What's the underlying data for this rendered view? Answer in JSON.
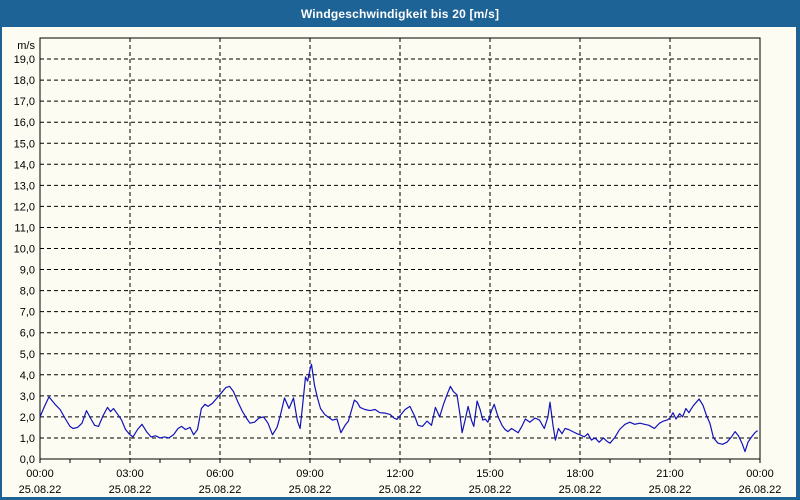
{
  "window": {
    "title": "Windgeschwindigkeit bis 20 [m/s]"
  },
  "colors": {
    "frame": "#1d6396",
    "titlebar_bg": "#1d6396",
    "titlebar_text": "#ffffff",
    "page_bg": "#fcfcf2",
    "grid": "#000000",
    "axis_border": "#000000",
    "line": "#1212bb",
    "label_text": "#000000"
  },
  "chart_data": {
    "type": "line",
    "title": "Windgeschwindigkeit bis 20 [m/s]",
    "ylabel": "m/s",
    "xlabel": "",
    "ylim": [
      0,
      20
    ],
    "ytick_step": 1,
    "ytick_labels": [
      "0,0",
      "1,0",
      "2,0",
      "3,0",
      "4,0",
      "5,0",
      "6,0",
      "7,0",
      "8,0",
      "9,0",
      "10,0",
      "11,0",
      "12,0",
      "13,0",
      "14,0",
      "15,0",
      "16,0",
      "17,0",
      "18,0",
      "19,0"
    ],
    "xlim_hours": [
      0,
      24
    ],
    "x_major_step_hours": 3,
    "x_minor_tick_hours": 1,
    "xticks": [
      {
        "time": "00:00",
        "date": "25.08.22"
      },
      {
        "time": "03:00",
        "date": "25.08.22"
      },
      {
        "time": "06:00",
        "date": "25.08.22"
      },
      {
        "time": "09:00",
        "date": "25.08.22"
      },
      {
        "time": "12:00",
        "date": "25.08.22"
      },
      {
        "time": "15:00",
        "date": "25.08.22"
      },
      {
        "time": "18:00",
        "date": "25.08.22"
      },
      {
        "time": "21:00",
        "date": "25.08.22"
      },
      {
        "time": "00:00",
        "date": "26.08.22"
      }
    ],
    "grid": "dashed",
    "legend": "none",
    "series": [
      {
        "name": "Windgeschwindigkeit",
        "unit": "m/s",
        "color": "#1212bb",
        "points": [
          [
            0.0,
            2.0
          ],
          [
            0.15,
            2.5
          ],
          [
            0.3,
            2.95
          ],
          [
            0.5,
            2.6
          ],
          [
            0.67,
            2.35
          ],
          [
            0.83,
            1.95
          ],
          [
            1.0,
            1.55
          ],
          [
            1.1,
            1.45
          ],
          [
            1.25,
            1.5
          ],
          [
            1.4,
            1.7
          ],
          [
            1.55,
            2.3
          ],
          [
            1.7,
            1.9
          ],
          [
            1.82,
            1.6
          ],
          [
            1.95,
            1.55
          ],
          [
            2.1,
            2.05
          ],
          [
            2.25,
            2.45
          ],
          [
            2.35,
            2.25
          ],
          [
            2.45,
            2.4
          ],
          [
            2.6,
            2.1
          ],
          [
            2.72,
            1.85
          ],
          [
            2.85,
            1.4
          ],
          [
            3.0,
            1.15
          ],
          [
            3.1,
            1.05
          ],
          [
            3.25,
            1.4
          ],
          [
            3.4,
            1.65
          ],
          [
            3.55,
            1.3
          ],
          [
            3.7,
            1.05
          ],
          [
            3.85,
            1.1
          ],
          [
            4.0,
            1.0
          ],
          [
            4.15,
            1.05
          ],
          [
            4.3,
            1.0
          ],
          [
            4.45,
            1.15
          ],
          [
            4.6,
            1.45
          ],
          [
            4.72,
            1.55
          ],
          [
            4.85,
            1.4
          ],
          [
            5.0,
            1.5
          ],
          [
            5.12,
            1.15
          ],
          [
            5.25,
            1.4
          ],
          [
            5.38,
            2.4
          ],
          [
            5.5,
            2.6
          ],
          [
            5.6,
            2.5
          ],
          [
            5.75,
            2.65
          ],
          [
            5.9,
            2.9
          ],
          [
            6.05,
            3.15
          ],
          [
            6.2,
            3.4
          ],
          [
            6.32,
            3.45
          ],
          [
            6.45,
            3.2
          ],
          [
            6.6,
            2.7
          ],
          [
            6.75,
            2.25
          ],
          [
            6.9,
            1.9
          ],
          [
            7.0,
            1.7
          ],
          [
            7.15,
            1.75
          ],
          [
            7.3,
            1.95
          ],
          [
            7.45,
            2.0
          ],
          [
            7.6,
            1.7
          ],
          [
            7.75,
            1.15
          ],
          [
            7.9,
            1.5
          ],
          [
            8.0,
            2.0
          ],
          [
            8.15,
            2.9
          ],
          [
            8.3,
            2.4
          ],
          [
            8.45,
            2.9
          ],
          [
            8.58,
            1.8
          ],
          [
            8.67,
            1.45
          ],
          [
            8.75,
            2.5
          ],
          [
            8.85,
            3.9
          ],
          [
            8.92,
            3.7
          ],
          [
            9.0,
            4.25
          ],
          [
            9.05,
            4.5
          ],
          [
            9.15,
            3.5
          ],
          [
            9.25,
            2.9
          ],
          [
            9.35,
            2.4
          ],
          [
            9.5,
            2.1
          ],
          [
            9.6,
            2.0
          ],
          [
            9.75,
            1.85
          ],
          [
            9.9,
            1.9
          ],
          [
            10.03,
            1.25
          ],
          [
            10.17,
            1.6
          ],
          [
            10.28,
            1.8
          ],
          [
            10.4,
            2.4
          ],
          [
            10.48,
            2.8
          ],
          [
            10.57,
            2.7
          ],
          [
            10.67,
            2.45
          ],
          [
            10.83,
            2.35
          ],
          [
            11.0,
            2.3
          ],
          [
            11.17,
            2.35
          ],
          [
            11.33,
            2.2
          ],
          [
            11.5,
            2.18
          ],
          [
            11.67,
            2.12
          ],
          [
            11.8,
            1.95
          ],
          [
            11.9,
            1.88
          ],
          [
            12.0,
            2.05
          ],
          [
            12.17,
            2.35
          ],
          [
            12.33,
            2.5
          ],
          [
            12.5,
            2.0
          ],
          [
            12.6,
            1.6
          ],
          [
            12.75,
            1.55
          ],
          [
            12.9,
            1.8
          ],
          [
            13.05,
            1.6
          ],
          [
            13.18,
            2.45
          ],
          [
            13.32,
            2.0
          ],
          [
            13.45,
            2.6
          ],
          [
            13.58,
            3.1
          ],
          [
            13.68,
            3.45
          ],
          [
            13.78,
            3.2
          ],
          [
            13.9,
            3.05
          ],
          [
            14.0,
            2.1
          ],
          [
            14.07,
            1.25
          ],
          [
            14.17,
            1.85
          ],
          [
            14.27,
            2.5
          ],
          [
            14.38,
            1.85
          ],
          [
            14.46,
            1.55
          ],
          [
            14.57,
            2.75
          ],
          [
            14.67,
            2.35
          ],
          [
            14.76,
            1.85
          ],
          [
            14.84,
            1.9
          ],
          [
            14.93,
            1.75
          ],
          [
            15.05,
            2.3
          ],
          [
            15.14,
            2.6
          ],
          [
            15.27,
            2.0
          ],
          [
            15.4,
            1.6
          ],
          [
            15.5,
            1.4
          ],
          [
            15.6,
            1.3
          ],
          [
            15.72,
            1.45
          ],
          [
            15.83,
            1.35
          ],
          [
            15.94,
            1.25
          ],
          [
            16.06,
            1.55
          ],
          [
            16.18,
            1.9
          ],
          [
            16.33,
            1.75
          ],
          [
            16.5,
            1.95
          ],
          [
            16.65,
            1.85
          ],
          [
            16.81,
            1.45
          ],
          [
            16.93,
            2.0
          ],
          [
            17.0,
            2.7
          ],
          [
            17.1,
            1.6
          ],
          [
            17.18,
            0.9
          ],
          [
            17.28,
            1.45
          ],
          [
            17.4,
            1.2
          ],
          [
            17.5,
            1.45
          ],
          [
            17.62,
            1.4
          ],
          [
            17.76,
            1.3
          ],
          [
            17.9,
            1.2
          ],
          [
            18.0,
            1.15
          ],
          [
            18.14,
            1.05
          ],
          [
            18.26,
            1.2
          ],
          [
            18.38,
            0.9
          ],
          [
            18.5,
            1.0
          ],
          [
            18.64,
            0.8
          ],
          [
            18.78,
            1.0
          ],
          [
            18.89,
            0.85
          ],
          [
            19.0,
            0.75
          ],
          [
            19.15,
            1.0
          ],
          [
            19.32,
            1.4
          ],
          [
            19.5,
            1.65
          ],
          [
            19.66,
            1.75
          ],
          [
            19.82,
            1.65
          ],
          [
            20.0,
            1.7
          ],
          [
            20.15,
            1.65
          ],
          [
            20.3,
            1.6
          ],
          [
            20.48,
            1.45
          ],
          [
            20.65,
            1.7
          ],
          [
            20.78,
            1.8
          ],
          [
            20.9,
            1.85
          ],
          [
            21.0,
            1.95
          ],
          [
            21.1,
            2.2
          ],
          [
            21.2,
            1.9
          ],
          [
            21.32,
            2.15
          ],
          [
            21.42,
            2.0
          ],
          [
            21.53,
            2.4
          ],
          [
            21.63,
            2.2
          ],
          [
            21.76,
            2.5
          ],
          [
            21.88,
            2.7
          ],
          [
            21.97,
            2.85
          ],
          [
            22.1,
            2.55
          ],
          [
            22.22,
            2.05
          ],
          [
            22.33,
            1.7
          ],
          [
            22.45,
            1.0
          ],
          [
            22.6,
            0.75
          ],
          [
            22.75,
            0.7
          ],
          [
            22.9,
            0.8
          ],
          [
            23.05,
            1.05
          ],
          [
            23.17,
            1.3
          ],
          [
            23.28,
            1.1
          ],
          [
            23.4,
            0.75
          ],
          [
            23.5,
            0.35
          ],
          [
            23.6,
            0.8
          ],
          [
            23.72,
            1.05
          ],
          [
            23.83,
            1.25
          ],
          [
            23.92,
            1.35
          ]
        ]
      }
    ]
  }
}
